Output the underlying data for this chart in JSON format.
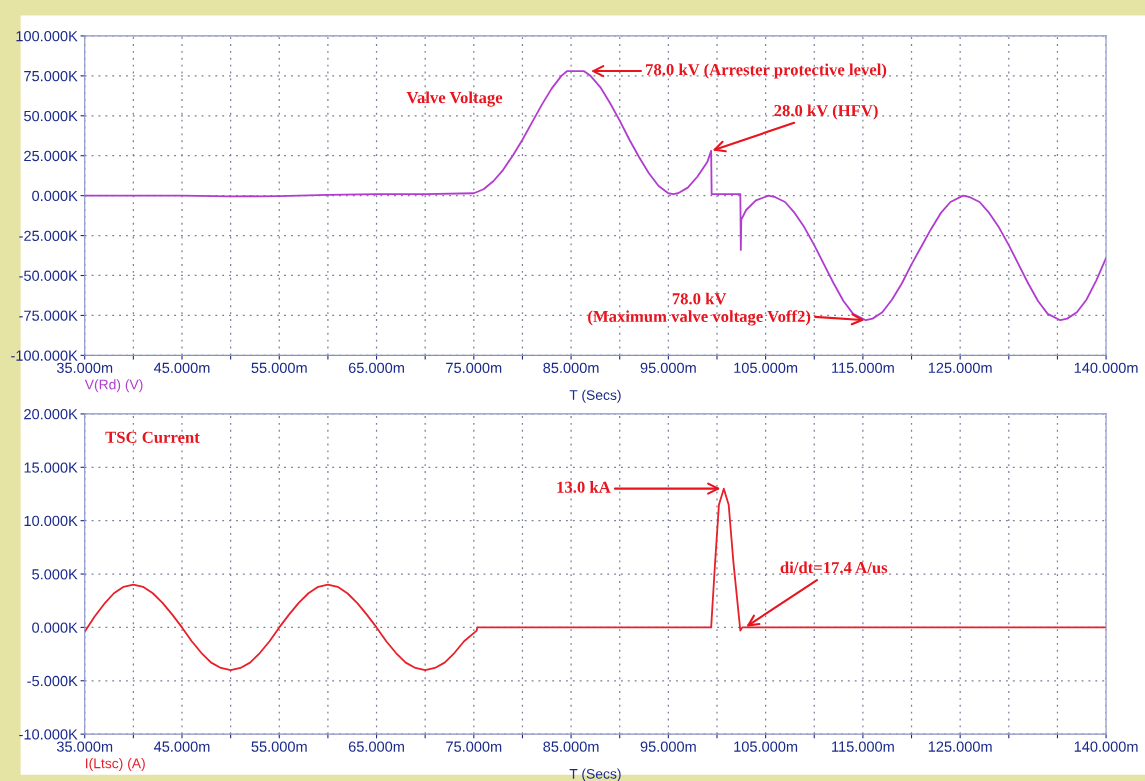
{
  "chart_data": [
    {
      "type": "line",
      "title": "Valve Voltage",
      "xlabel": "T (Secs)",
      "legend": "bottom left",
      "grid": true,
      "marker": "none",
      "line_style": "solid",
      "xlim": [
        35,
        140
      ],
      "ylim": [
        -100000,
        100000
      ],
      "xticks": [
        {
          "value": 35,
          "label": "35.000m"
        },
        {
          "value": 40,
          "label": null
        },
        {
          "value": 45,
          "label": "45.000m"
        },
        {
          "value": 50,
          "label": null
        },
        {
          "value": 55,
          "label": "55.000m"
        },
        {
          "value": 60,
          "label": null
        },
        {
          "value": 65,
          "label": "65.000m"
        },
        {
          "value": 70,
          "label": null
        },
        {
          "value": 75,
          "label": "75.000m"
        },
        {
          "value": 80,
          "label": null
        },
        {
          "value": 85,
          "label": "85.000m"
        },
        {
          "value": 90,
          "label": null
        },
        {
          "value": 95,
          "label": "95.000m"
        },
        {
          "value": 100,
          "label": null
        },
        {
          "value": 105,
          "label": "105.000m"
        },
        {
          "value": 110,
          "label": null
        },
        {
          "value": 115,
          "label": "115.000m"
        },
        {
          "value": 120,
          "label": null
        },
        {
          "value": 125,
          "label": "125.000m"
        },
        {
          "value": 130,
          "label": null
        },
        {
          "value": 135,
          "label": null
        },
        {
          "value": 140,
          "label": "140.000m"
        }
      ],
      "yticks": [
        {
          "value": -100000,
          "label": "-100.000K"
        },
        {
          "value": -75000,
          "label": "-75.000K"
        },
        {
          "value": -50000,
          "label": "-50.000K"
        },
        {
          "value": -25000,
          "label": "-25.000K"
        },
        {
          "value": 0,
          "label": "0.000K"
        },
        {
          "value": 25000,
          "label": "25.000K"
        },
        {
          "value": 50000,
          "label": "50.000K"
        },
        {
          "value": 75000,
          "label": "75.000K"
        },
        {
          "value": 100000,
          "label": "100.000K"
        }
      ],
      "series": [
        {
          "name": "V(Rd) (V)",
          "color": "#b03cd0",
          "x": [
            35,
            45,
            50,
            55,
            60,
            65,
            70,
            75,
            76,
            77,
            78,
            79,
            80,
            81,
            82,
            83,
            84,
            84.6,
            86.3,
            87,
            88,
            89,
            90,
            91,
            92,
            93,
            94,
            95,
            95.5,
            96,
            97,
            98,
            99,
            99.4,
            99.45,
            102.4,
            102.45,
            102.5,
            103,
            104,
            105.3,
            106,
            107,
            108,
            109,
            110,
            111,
            112,
            113,
            114,
            115.3,
            116,
            117,
            118,
            119,
            120,
            121,
            122,
            123,
            124,
            125.3,
            126,
            127,
            128,
            129,
            130,
            131,
            132,
            133,
            134,
            135.3,
            136,
            137,
            138,
            139,
            140
          ],
          "values": [
            0,
            0,
            -500,
            -300,
            500,
            1000,
            1000,
            1500,
            4000,
            9000,
            16000,
            25000,
            35000,
            46000,
            57000,
            67000,
            75000,
            78000,
            78000,
            75000,
            68000,
            58000,
            47000,
            35000,
            24000,
            14000,
            6000,
            1500,
            1000,
            1500,
            5000,
            12000,
            21000,
            28000,
            1000,
            1000,
            -34000,
            -15000,
            -9000,
            -3000,
            0,
            -1000,
            -4000,
            -11000,
            -20000,
            -31000,
            -43000,
            -55000,
            -66000,
            -74000,
            -78000,
            -77000,
            -73000,
            -65000,
            -55000,
            -43000,
            -32000,
            -21000,
            -11000,
            -4000,
            0,
            -1000,
            -4000,
            -11000,
            -20000,
            -31000,
            -43000,
            -55000,
            -66000,
            -74000,
            -78000,
            -77000,
            -73000,
            -65000,
            -53000,
            -39000
          ]
        }
      ],
      "annotations": [
        {
          "text": "78.0 kV (Arrester protective level)",
          "x": 86.9,
          "y": 78000
        },
        {
          "text": "28.0 kV (HFV)",
          "x": 99.4,
          "y": 28000
        },
        {
          "text": "78.0 kV\n(Maximum valve voltage Voff2)",
          "x": 115.3,
          "y": -78000
        }
      ]
    },
    {
      "type": "line",
      "title": "TSC Current",
      "xlabel": "T (Secs)",
      "legend": "bottom left",
      "grid": true,
      "marker": "none",
      "line_style": "solid",
      "xlim": [
        35,
        140
      ],
      "ylim": [
        -10000,
        20000
      ],
      "xticks": [
        {
          "value": 35,
          "label": "35.000m"
        },
        {
          "value": 40,
          "label": null
        },
        {
          "value": 45,
          "label": "45.000m"
        },
        {
          "value": 50,
          "label": null
        },
        {
          "value": 55,
          "label": "55.000m"
        },
        {
          "value": 60,
          "label": null
        },
        {
          "value": 65,
          "label": "65.000m"
        },
        {
          "value": 70,
          "label": null
        },
        {
          "value": 75,
          "label": "75.000m"
        },
        {
          "value": 80,
          "label": null
        },
        {
          "value": 85,
          "label": "85.000m"
        },
        {
          "value": 90,
          "label": null
        },
        {
          "value": 95,
          "label": "95.000m"
        },
        {
          "value": 100,
          "label": null
        },
        {
          "value": 105,
          "label": "105.000m"
        },
        {
          "value": 110,
          "label": null
        },
        {
          "value": 115,
          "label": "115.000m"
        },
        {
          "value": 120,
          "label": null
        },
        {
          "value": 125,
          "label": "125.000m"
        },
        {
          "value": 130,
          "label": null
        },
        {
          "value": 135,
          "label": null
        },
        {
          "value": 140,
          "label": "140.000m"
        }
      ],
      "yticks": [
        {
          "value": -10000,
          "label": "-10.000K"
        },
        {
          "value": -5000,
          "label": "-5.000K"
        },
        {
          "value": 0,
          "label": "0.000K"
        },
        {
          "value": 5000,
          "label": "5.000K"
        },
        {
          "value": 10000,
          "label": "10.000K"
        },
        {
          "value": 15000,
          "label": "15.000K"
        },
        {
          "value": 20000,
          "label": "20.000K"
        }
      ],
      "series": [
        {
          "name": "I(Ltsc) (A)",
          "color": "#e8202a",
          "x": [
            35,
            36,
            37,
            38,
            39,
            40,
            41,
            42,
            43,
            44,
            45,
            46,
            47,
            48,
            49,
            50,
            51,
            52,
            53,
            54,
            55,
            56,
            57,
            58,
            59,
            60,
            61,
            62,
            63,
            64,
            65,
            66,
            67,
            68,
            69,
            70,
            71,
            72,
            73,
            74,
            75.3,
            75.35,
            99.4,
            99.8,
            100.2,
            100.7,
            101.2,
            101.7,
            102.4,
            102.6,
            140
          ],
          "values": [
            -400,
            1000,
            2200,
            3200,
            3800,
            4000,
            3800,
            3200,
            2300,
            1200,
            0,
            -1300,
            -2400,
            -3300,
            -3800,
            -4000,
            -3800,
            -3300,
            -2400,
            -1300,
            0,
            1200,
            2300,
            3200,
            3800,
            4000,
            3800,
            3200,
            2300,
            1200,
            0,
            -1300,
            -2400,
            -3300,
            -3800,
            -4000,
            -3800,
            -3300,
            -2400,
            -1300,
            -300,
            0,
            0,
            6000,
            11500,
            13000,
            11500,
            6000,
            -300,
            0,
            0
          ]
        }
      ],
      "annotations": [
        {
          "text": "13.0 kA",
          "x": 100.5,
          "y": 13000
        },
        {
          "text": "di/dt=17.4 A/us",
          "x": 102.9,
          "y": 0
        }
      ]
    }
  ]
}
